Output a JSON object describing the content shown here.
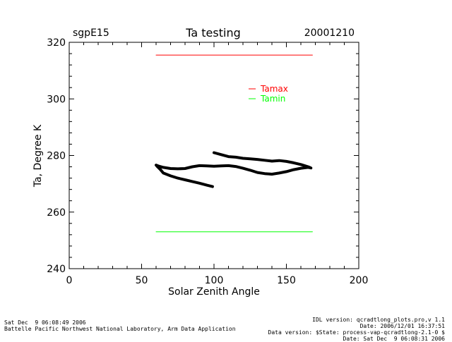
{
  "chart_data": {
    "type": "line",
    "title": "Ta testing",
    "site_label": "sgpE15",
    "date_label": "20001210",
    "xlabel": "Solar Zenith Angle",
    "ylabel": "Ta, Degree K",
    "xlim": [
      0,
      200
    ],
    "ylim": [
      240,
      320
    ],
    "xticks": [
      0,
      50,
      100,
      150,
      200
    ],
    "yticks": [
      240,
      260,
      280,
      300,
      320
    ],
    "grid": false,
    "legend_position": "upper-right",
    "series": [
      {
        "name": "Tamax",
        "color": "#ff0000",
        "x": [
          60,
          168
        ],
        "y": [
          315.5,
          315.5
        ]
      },
      {
        "name": "Tamin",
        "color": "#00ff00",
        "x": [
          60,
          168
        ],
        "y": [
          253,
          253
        ]
      },
      {
        "name": "",
        "color": "#000000",
        "x": [
          99,
          95,
          90,
          85,
          80,
          75,
          70,
          65,
          63,
          61,
          60,
          62,
          65,
          70,
          75,
          80,
          85,
          90,
          95,
          100,
          105,
          110,
          115,
          120,
          125,
          130,
          135,
          140,
          145,
          150,
          155,
          160,
          165,
          167,
          165,
          160,
          155,
          150,
          145,
          140,
          135,
          130,
          125,
          120,
          115,
          110,
          105,
          100
        ],
        "y": [
          269,
          269.5,
          270.2,
          270.8,
          271.4,
          272.0,
          272.8,
          273.8,
          275.0,
          276.0,
          276.6,
          276.2,
          275.8,
          275.4,
          275.3,
          275.4,
          276.0,
          276.4,
          276.3,
          276.2,
          276.3,
          276.4,
          276.1,
          275.5,
          274.8,
          274.0,
          273.6,
          273.4,
          273.8,
          274.3,
          275.0,
          275.5,
          275.8,
          275.6,
          276.0,
          276.8,
          277.4,
          277.9,
          278.2,
          278.0,
          278.3,
          278.6,
          278.8,
          279.0,
          279.4,
          279.6,
          280.3,
          281.0
        ]
      }
    ]
  },
  "footer": {
    "left_line1": "Sat Dec  9 06:08:49 2006",
    "left_line2": "Battelle Pacific Northwest National Laboratory, Arm Data Application",
    "right_line1": "IDL version: qcradtlong_plots.pro,v 1.1",
    "right_line2": "Date: 2006/12/01 16:37:51",
    "right_line3": "Data version: $State: process-vap-qcradtlong-2.1-0 $",
    "right_line4": "Date: Sat Dec  9 06:08:31 2006"
  }
}
